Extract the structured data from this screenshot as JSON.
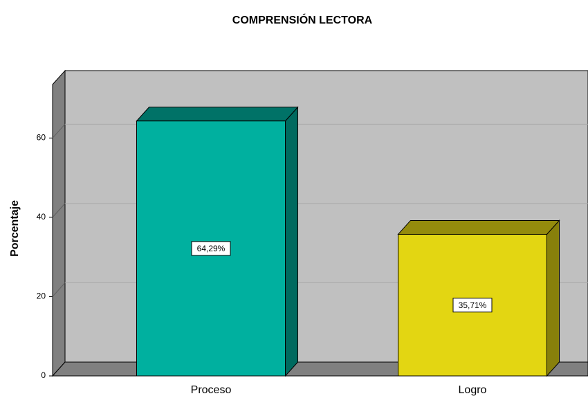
{
  "chart_data": {
    "type": "bar3d",
    "title": "COMPRENSIÓN LECTORA",
    "y_label": "Porcentaje",
    "categories": [
      "Proceso",
      "Logro"
    ],
    "values": [
      64.29,
      35.71
    ],
    "value_labels": [
      "64,29%",
      "35,71%"
    ],
    "colors": [
      "#00b09f",
      "#e3d612"
    ],
    "ylim": [
      0,
      73.5
    ],
    "yticks": [
      0,
      20,
      40,
      60
    ],
    "grid": true
  }
}
